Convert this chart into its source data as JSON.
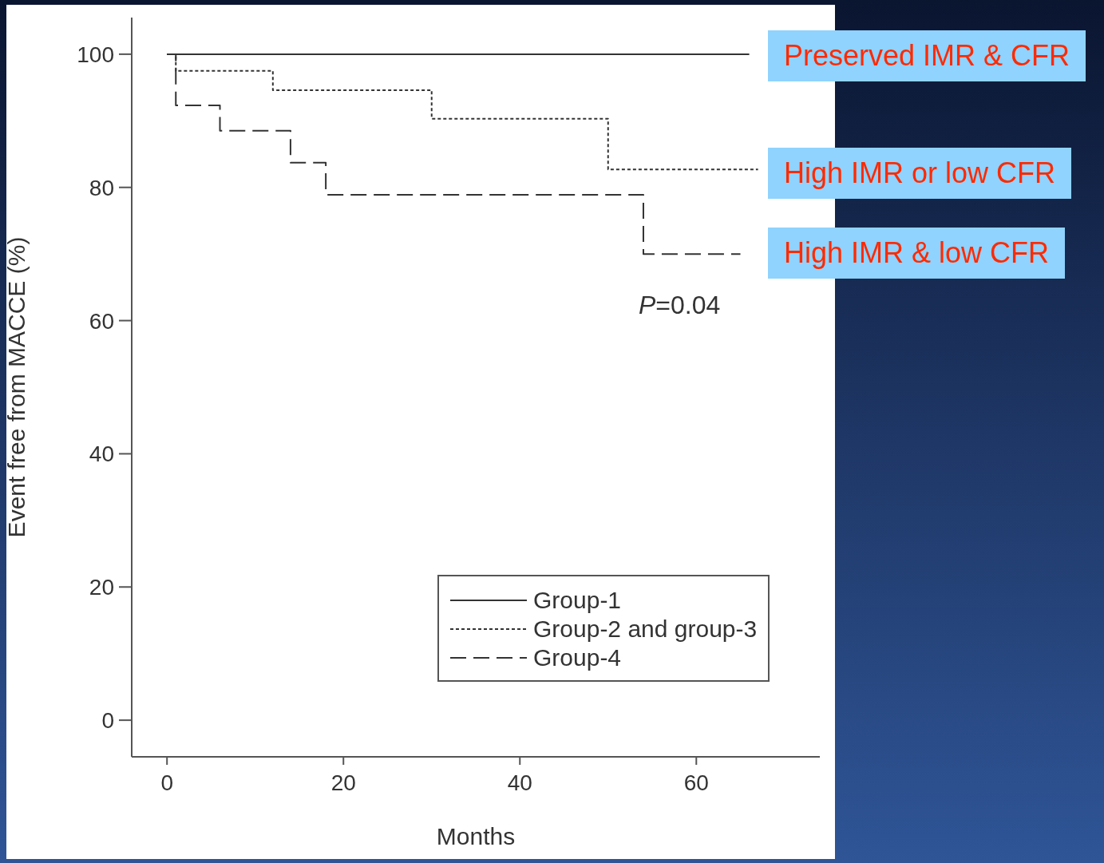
{
  "chart_data": {
    "type": "step",
    "xlabel": "Months",
    "ylabel": "Event free from MACCE (%)",
    "xlim": [
      -4,
      74
    ],
    "xticks": [
      0,
      20,
      40,
      60
    ],
    "ylim": [
      -5.5,
      105.5
    ],
    "yticks": [
      0,
      20,
      40,
      60,
      80,
      100
    ],
    "legend": "bottom right",
    "series": [
      {
        "name": "Group-1",
        "color": "#333333",
        "line_style": "solid",
        "x": [
          0,
          66
        ],
        "values": [
          100,
          100
        ]
      },
      {
        "name": "Group-2 and group-3",
        "color": "#333333",
        "line_style": "dotted",
        "x": [
          0,
          1,
          12,
          30,
          50,
          67
        ],
        "values": [
          100,
          97.5,
          94.6,
          90.3,
          82.7,
          82.7
        ]
      },
      {
        "name": "Group-4",
        "color": "#333333",
        "line_style": "dashed",
        "x": [
          0,
          1,
          6,
          14,
          18,
          54,
          65
        ],
        "values": [
          100,
          92.3,
          88.5,
          83.7,
          78.9,
          70,
          70
        ]
      }
    ],
    "annotations": [
      "Preserved IMR & CFR",
      "High IMR or low CFR",
      "High IMR & low CFR",
      "P=0.04"
    ]
  }
}
